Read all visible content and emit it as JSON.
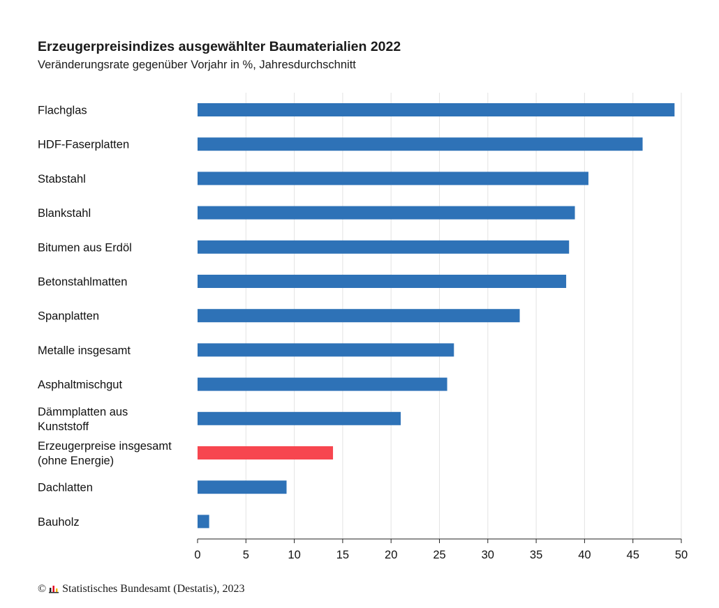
{
  "chart_data": {
    "type": "bar",
    "orientation": "horizontal",
    "title": "Erzeugerpreisindizes ausgewählter Baumaterialien 2022",
    "subtitle": "Veränderungsrate gegenüber Vorjahr in %, Jahresdurchschnitt",
    "categories": [
      "Flachglas",
      "HDF-Faserplatten",
      "Stabstahl",
      "Blankstahl",
      "Bitumen aus Erdöl",
      "Betonstahlmatten",
      "Spanplatten",
      "Metalle insgesamt",
      "Asphaltmischgut",
      "Dämmplatten aus Kunststoff",
      "Erzeugerpreise insgesamt (ohne Energie)",
      "Dachlatten",
      "Bauholz"
    ],
    "category_lines": [
      [
        "Flachglas"
      ],
      [
        "HDF-Faserplatten"
      ],
      [
        "Stabstahl"
      ],
      [
        "Blankstahl"
      ],
      [
        "Bitumen aus Erdöl"
      ],
      [
        "Betonstahlmatten"
      ],
      [
        "Spanplatten"
      ],
      [
        "Metalle insgesamt"
      ],
      [
        "Asphaltmischgut"
      ],
      [
        "Dämmplatten aus",
        "Kunststoff"
      ],
      [
        "Erzeugerpreise insgesamt",
        "(ohne Energie)"
      ],
      [
        "Dachlatten"
      ],
      [
        "Bauholz"
      ]
    ],
    "values": [
      49.3,
      46.0,
      40.4,
      39.0,
      38.4,
      38.1,
      33.3,
      26.5,
      25.8,
      21.0,
      14.0,
      9.2,
      1.2
    ],
    "highlight_index": 10,
    "xlim": [
      0,
      50
    ],
    "xticks": [
      0,
      5,
      10,
      15,
      20,
      25,
      30,
      35,
      40,
      45,
      50
    ],
    "grid": true,
    "colors": {
      "bar": "#2e72b7",
      "highlight": "#f7464f",
      "grid": "#e3e3e3",
      "axis": "#222222"
    }
  },
  "footer": {
    "copyright": "©",
    "source": "Statistisches Bundesamt (Destatis), 2023"
  }
}
